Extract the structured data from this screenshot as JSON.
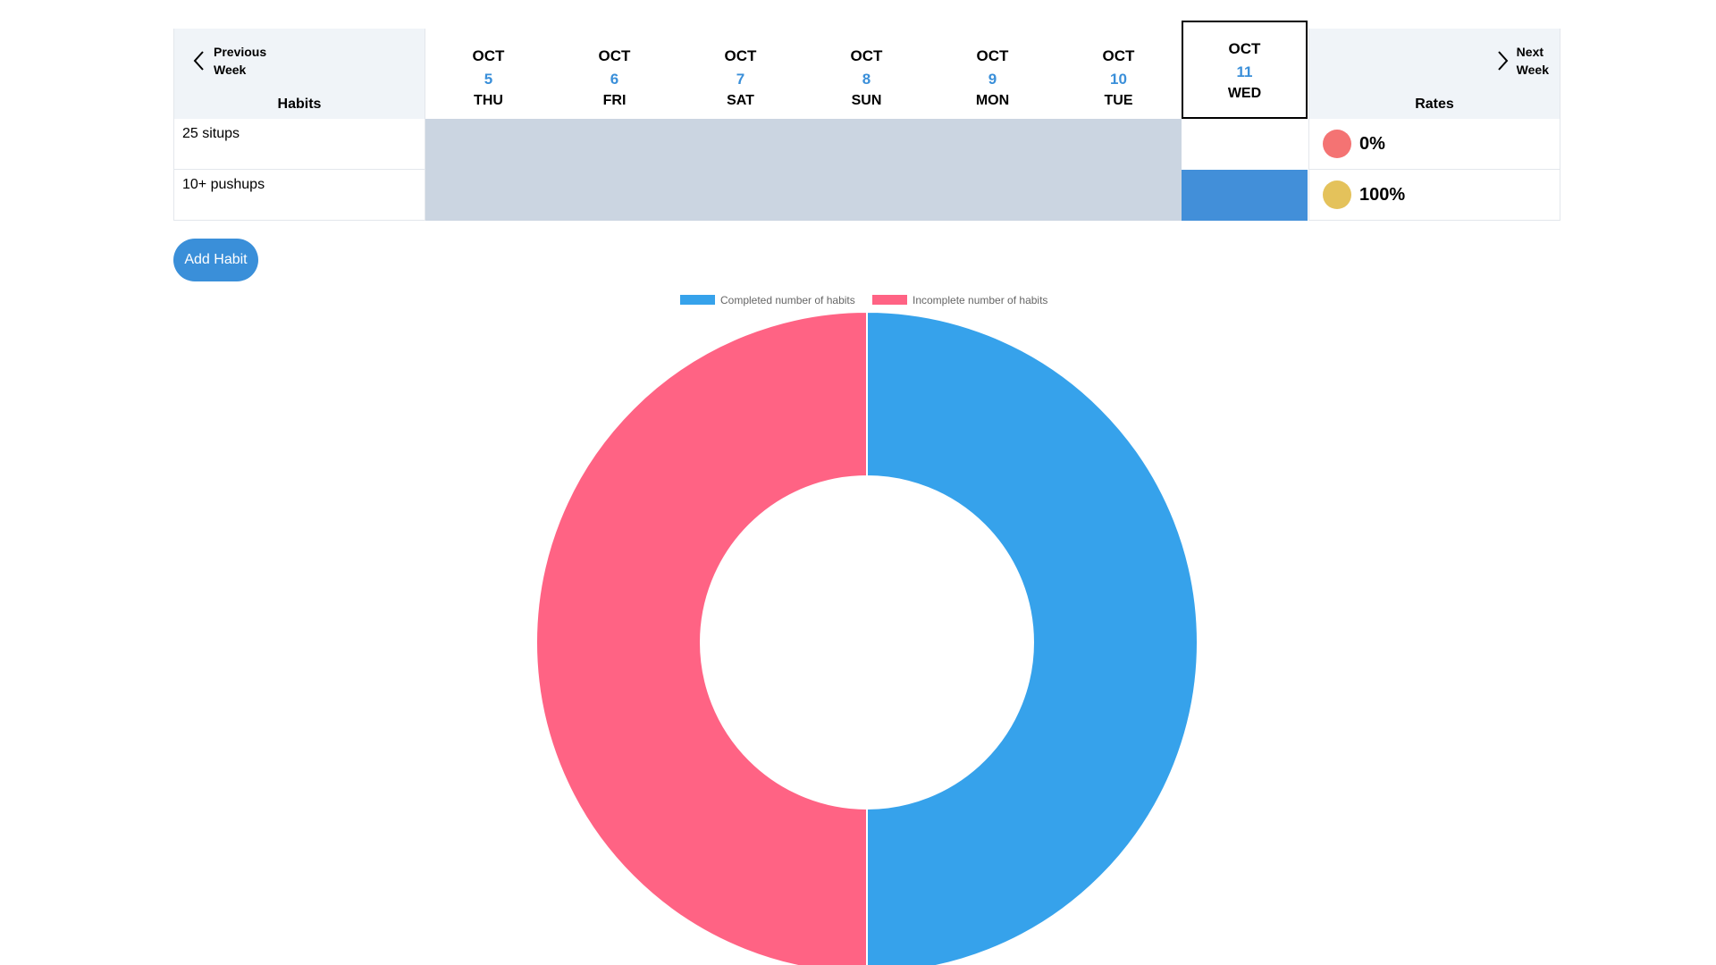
{
  "header": {
    "prev_week": "Previous\nWeek",
    "next_week": "Next\nWeek",
    "habits_title": "Habits",
    "rates_title": "Rates"
  },
  "days": [
    {
      "month": "OCT",
      "day": "5",
      "weekday": "THU"
    },
    {
      "month": "OCT",
      "day": "6",
      "weekday": "FRI"
    },
    {
      "month": "OCT",
      "day": "7",
      "weekday": "SAT"
    },
    {
      "month": "OCT",
      "day": "8",
      "weekday": "SUN"
    },
    {
      "month": "OCT",
      "day": "9",
      "weekday": "MON"
    },
    {
      "month": "OCT",
      "day": "10",
      "weekday": "TUE"
    },
    {
      "month": "OCT",
      "day": "11",
      "weekday": "WED",
      "today": true
    }
  ],
  "habits": [
    {
      "name": "25 situps",
      "rate": "0%",
      "rate_color": "#f47373",
      "today_done": false
    },
    {
      "name": "10+ pushups",
      "rate": "100%",
      "rate_color": "#e4c25b",
      "today_done": true
    }
  ],
  "colors": {
    "past_cell": "#cbd5e1",
    "done_cell": "#428fd9",
    "accent": "#3a8fd9"
  },
  "icons": {
    "prev": "chevron-left-icon",
    "next": "chevron-right-icon"
  },
  "actions": {
    "add_habit": "Add Habit"
  },
  "chart_data": {
    "type": "pie",
    "variant": "doughnut",
    "labels": [
      "Completed number of habits",
      "Incomplete number of habits"
    ],
    "values": [
      1,
      1
    ],
    "colors": [
      "#36a2eb",
      "#ff6384"
    ],
    "legend_position": "top"
  }
}
